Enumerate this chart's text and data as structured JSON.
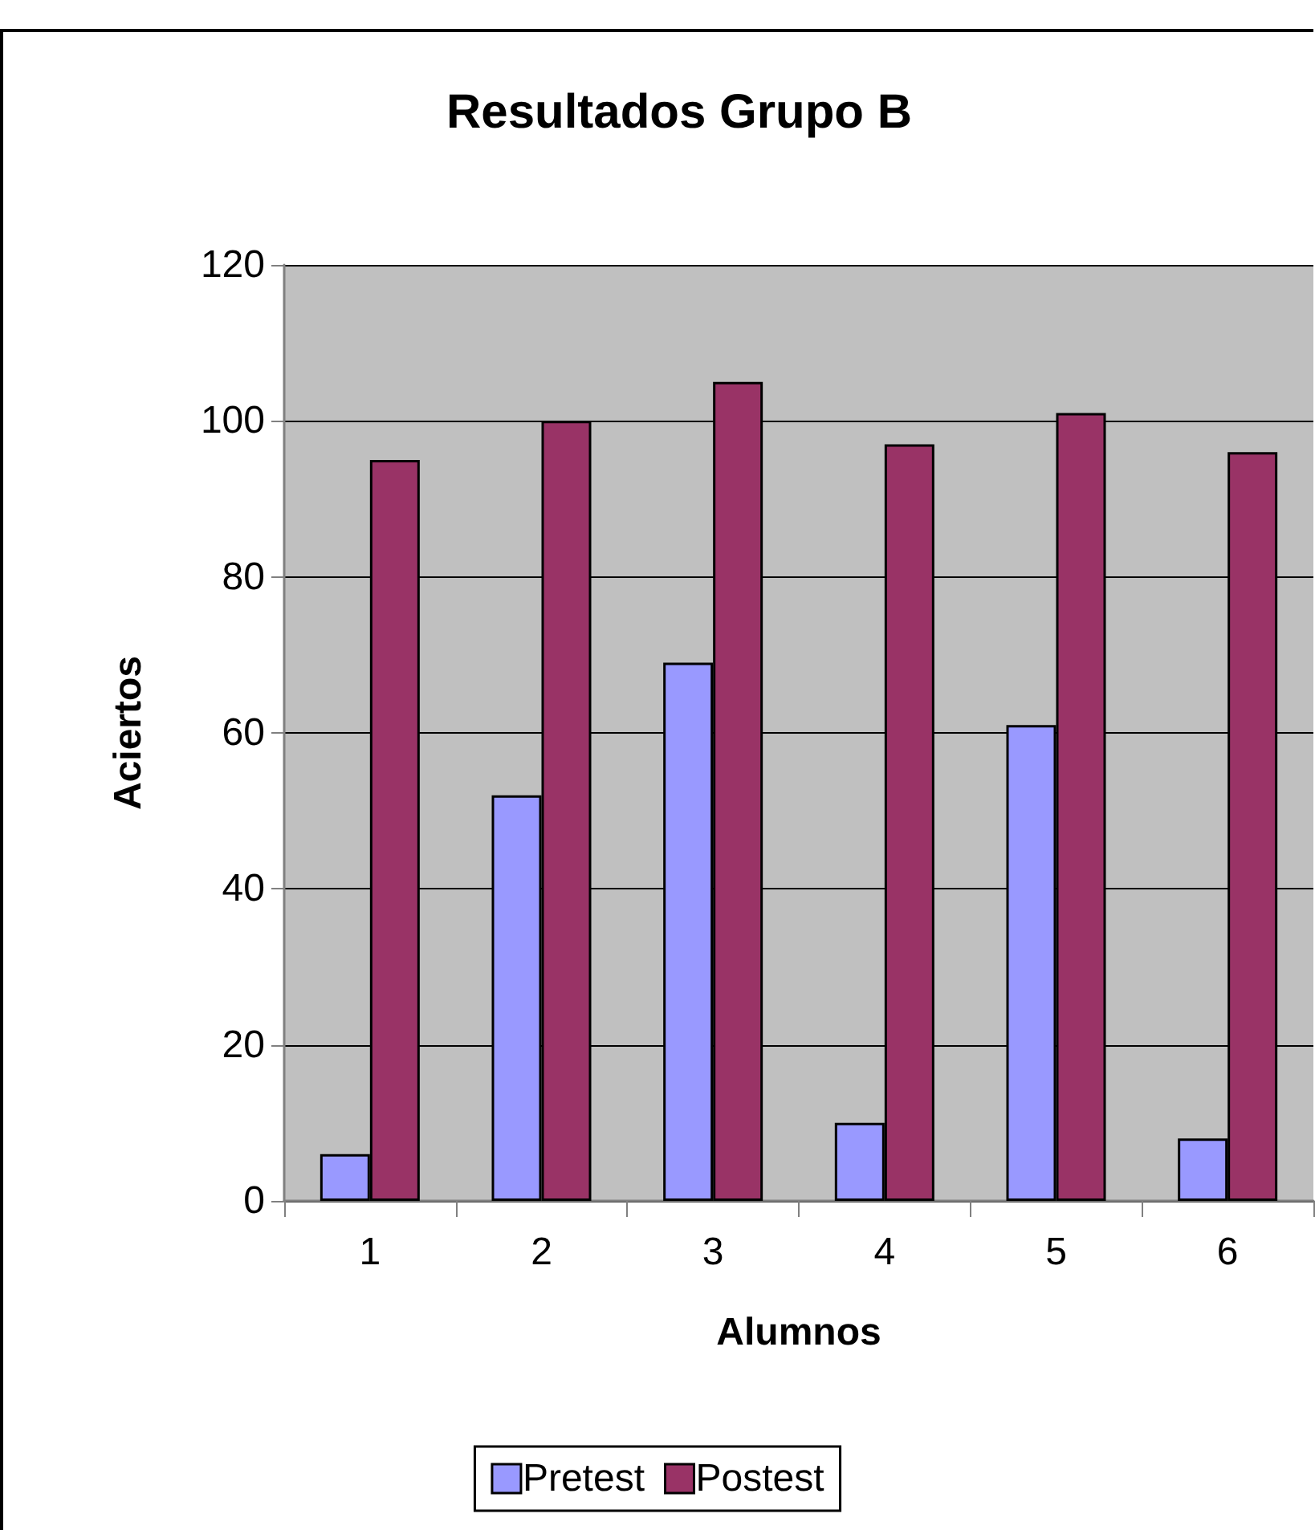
{
  "chart_data": {
    "type": "bar",
    "title": "Resultados Grupo B",
    "xlabel": "Alumnos",
    "ylabel": "Aciertos",
    "categories": [
      "1",
      "2",
      "3",
      "4",
      "5",
      "6"
    ],
    "series": [
      {
        "name": "Pretest",
        "color": "#9999ff",
        "values": [
          6,
          52,
          69,
          10,
          61,
          8
        ]
      },
      {
        "name": "Postest",
        "color": "#993366",
        "values": [
          95,
          100,
          105,
          97,
          101,
          96
        ]
      }
    ],
    "ylim": [
      0,
      120
    ],
    "yticks": [
      0,
      20,
      40,
      60,
      80,
      100,
      120
    ],
    "grid": "y",
    "legend": "bottom"
  }
}
